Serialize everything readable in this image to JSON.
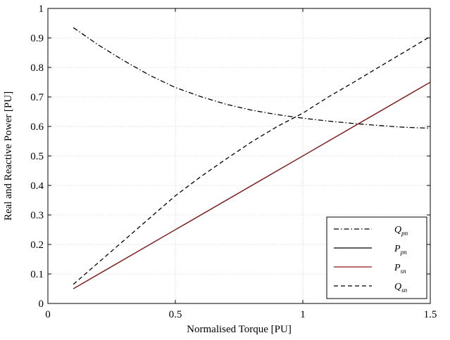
{
  "chart_data": {
    "type": "line",
    "title": "",
    "xlabel": "Normalised Torque [PU]",
    "ylabel": "Real and Reactive Power [PU]",
    "xlim": [
      0,
      1.5
    ],
    "ylim": [
      0,
      1
    ],
    "x_ticks": [
      0,
      0.5,
      1,
      1.5
    ],
    "x_tick_labels": [
      "0",
      "0.5",
      "1",
      "1.5"
    ],
    "y_ticks": [
      0,
      0.1,
      0.2,
      0.3,
      0.4,
      0.5,
      0.6,
      0.7,
      0.8,
      0.9,
      1
    ],
    "y_tick_labels": [
      "0",
      "0.1",
      "0.2",
      "0.3",
      "0.4",
      "0.5",
      "0.6",
      "0.7",
      "0.8",
      "0.9",
      "1"
    ],
    "grid": true,
    "legend_position": "bottom-right",
    "series": [
      {
        "name": "Qpn",
        "label_main": "Q",
        "label_sub": "pn",
        "style": "dashdot",
        "color": "#000000",
        "x": [
          0.1,
          0.2,
          0.3,
          0.4,
          0.5,
          0.6,
          0.7,
          0.8,
          0.9,
          1.0,
          1.1,
          1.2,
          1.3,
          1.4,
          1.5
        ],
        "y": [
          0.935,
          0.875,
          0.822,
          0.773,
          0.732,
          0.701,
          0.675,
          0.655,
          0.64,
          0.628,
          0.618,
          0.61,
          0.603,
          0.597,
          0.594
        ]
      },
      {
        "name": "Ppn",
        "label_main": "P",
        "label_sub": "pn",
        "style": "solid",
        "color": "#000000",
        "x": [
          0.1,
          0.5,
          1.0,
          1.5
        ],
        "y": [
          0.05,
          0.25,
          0.5,
          0.75
        ]
      },
      {
        "name": "Psn",
        "label_main": "P",
        "label_sub": "sn",
        "style": "solid",
        "color": "#8b1a1a",
        "x": [
          0.1,
          0.5,
          1.0,
          1.5
        ],
        "y": [
          0.05,
          0.25,
          0.5,
          0.75
        ]
      },
      {
        "name": "Qsn",
        "label_main": "Q",
        "label_sub": "sn",
        "style": "dashed",
        "color": "#000000",
        "x": [
          0.1,
          0.2,
          0.3,
          0.4,
          0.5,
          0.6,
          0.7,
          0.8,
          0.9,
          1.0,
          1.1,
          1.2,
          1.3,
          1.4,
          1.5
        ],
        "y": [
          0.065,
          0.14,
          0.215,
          0.29,
          0.365,
          0.43,
          0.49,
          0.548,
          0.6,
          0.645,
          0.7,
          0.75,
          0.802,
          0.853,
          0.905
        ]
      }
    ]
  }
}
